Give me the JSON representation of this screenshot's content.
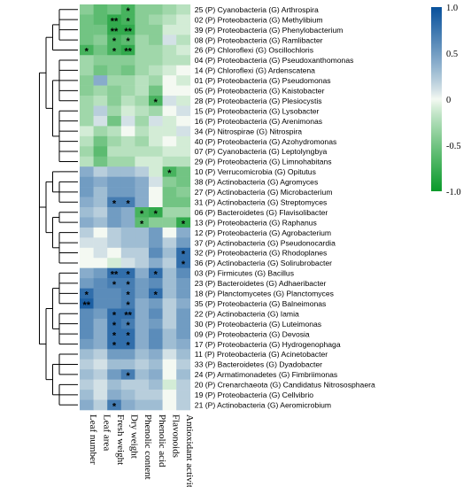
{
  "chart_data": {
    "type": "heatmap",
    "title": "",
    "columns": [
      "Leaf number",
      "Leaf area",
      "Fresh weight",
      "Dry weight",
      "Phenolic content",
      "Phenolic acid",
      "Flavonoids",
      "Antioxidant activity"
    ],
    "rows": [
      "25 (P) Cyanobacteria (G) Arthrospira",
      "02 (P) Proteobacteria (G) Methylibium",
      "39 (P) Proteobacteria (G) Phenylobacterium",
      "08 (P) Proteobacteria (G) Ramlibacter",
      "26 (P) Chloroflexi (G) Oscillochloris",
      "04 (P) Proteobacteria (G) Pseudoxanthomonas",
      "14 (P) Chloroflexi (G) Ardenscatena",
      "01 (P) Proteobacteria (G) Pseudomonas",
      "05 (P) Proteobacteria (G) Kaistobacter",
      "28 (P) Proteobacteria (G) Plesiocystis",
      "15 (P) Proteobacteria (G) Lysobacter",
      "16 (P) Proteobacteria (G) Arenimonas",
      "34 (P) Nitrospirae (G) Nitrospira",
      "40 (P) Proteobacteria (G) Azohydromonas",
      "07 (P) Cyanobacteria (G) Leptolyngbya",
      "29 (P) Proteobacteria (G) Limnohabitans",
      "10 (P) Verrucomicrobia (G) Opitutus",
      "38 (P) Actinobacteria (G) Agromyces",
      "27 (P) Actinobacteria (G) Microbacterium",
      "31 (P) Actinobacteria (G) Streptomyces",
      "06 (P) Bacteroidetes (G) Flavisolibacter",
      "13 (P) Proteobacteria (G) Raphanus",
      "12 (P) Proteobacteria (G) Agrobacterium",
      "37 (P) Actinobacteria (G) Pseudonocardia",
      "32 (P) Proteobacteria (G) Rhodoplanes",
      "36 (P) Actinobacteria (G) Solirubrobacter",
      "03 (P) Firmicutes (G) Bacillus",
      "23 (P) Bacteroidetes (G) Adhaeribacter",
      "18 (P) Planctomycetes (G) Planctomyces",
      "35 (P) Proteobacteria (G) Balneimonas",
      "22 (P) Actinobacteria (G) Iamia",
      "30 (P) Proteobacteria (G) Luteimonas",
      "09 (P) Proteobacteria (G) Devosia",
      "17 (P) Proteobacteria (G) Hydrogenophaga",
      "11 (P) Proteobacteria (G) Acinetobacter",
      "33 (P) Bacteroidetes (G) Dyadobacter",
      "24 (P) Armatimonadetes (G) Fimbriimonas",
      "20 (P) Crenarchaeota (G) Candidatus Nitrososphaera",
      "19 (P) Proteobacteria (G) Cellvibrio",
      "21 (P) Actinobacteria (G) Aeromicrobium"
    ],
    "values": [
      [
        -0.4,
        -0.6,
        -0.5,
        -0.7,
        -0.4,
        -0.4,
        -0.3,
        -0.2
      ],
      [
        -0.5,
        -0.6,
        -0.8,
        -0.7,
        -0.4,
        -0.3,
        -0.2,
        -0.1
      ],
      [
        -0.5,
        -0.5,
        -0.8,
        -0.8,
        -0.4,
        -0.4,
        -0.1,
        -0.1
      ],
      [
        -0.5,
        -0.4,
        -0.7,
        -0.6,
        -0.3,
        -0.4,
        0.1,
        -0.2
      ],
      [
        -0.7,
        -0.5,
        -0.7,
        -0.8,
        -0.3,
        -0.3,
        -0.2,
        -0.1
      ],
      [
        -0.3,
        -0.4,
        -0.4,
        -0.4,
        -0.3,
        -0.3,
        -0.2,
        -0.2
      ],
      [
        -0.3,
        -0.5,
        -0.4,
        -0.5,
        -0.3,
        -0.2,
        -0.1,
        0.0
      ],
      [
        -0.4,
        0.4,
        -0.3,
        -0.3,
        -0.2,
        -0.3,
        0.0,
        -0.1
      ],
      [
        -0.4,
        -0.3,
        -0.4,
        -0.3,
        -0.2,
        -0.5,
        0.0,
        0.0
      ],
      [
        -0.3,
        -0.2,
        -0.4,
        -0.2,
        -0.3,
        -0.7,
        0.1,
        -0.1
      ],
      [
        -0.3,
        0.2,
        -0.3,
        -0.1,
        -0.2,
        -0.3,
        0.0,
        0.1
      ],
      [
        -0.3,
        0.1,
        -0.5,
        0.1,
        -0.3,
        0.1,
        -0.1,
        0.0
      ],
      [
        -0.1,
        -0.3,
        -0.2,
        0.0,
        -0.2,
        -0.1,
        -0.1,
        0.1
      ],
      [
        -0.2,
        -0.5,
        -0.3,
        -0.2,
        -0.3,
        -0.1,
        0.0,
        -0.1
      ],
      [
        -0.3,
        -0.6,
        -0.2,
        -0.2,
        -0.2,
        -0.2,
        -0.1,
        -0.1
      ],
      [
        -0.2,
        -0.5,
        -0.3,
        -0.3,
        -0.1,
        -0.1,
        -0.2,
        -0.2
      ],
      [
        0.4,
        0.2,
        0.3,
        0.3,
        0.2,
        -0.1,
        -0.7,
        -0.5
      ],
      [
        0.5,
        0.4,
        0.5,
        0.5,
        0.4,
        0.1,
        -0.4,
        -0.5
      ],
      [
        0.5,
        0.3,
        0.5,
        0.5,
        0.4,
        0.0,
        -0.5,
        -0.4
      ],
      [
        0.4,
        0.3,
        0.7,
        0.7,
        0.4,
        0.0,
        -0.5,
        -0.5
      ],
      [
        0.3,
        0.2,
        0.5,
        0.4,
        -0.7,
        -0.8,
        -0.3,
        -0.3
      ],
      [
        0.4,
        0.3,
        0.5,
        0.4,
        -0.6,
        -0.4,
        -0.4,
        -0.8
      ],
      [
        0.2,
        0.0,
        0.2,
        0.3,
        0.3,
        0.5,
        0.0,
        0.4
      ],
      [
        0.1,
        0.1,
        0.2,
        0.3,
        0.3,
        0.5,
        0.2,
        0.5
      ],
      [
        0.0,
        0.1,
        0.0,
        0.2,
        0.2,
        0.6,
        0.3,
        0.8
      ],
      [
        0.0,
        0.0,
        -0.1,
        0.1,
        0.2,
        0.4,
        0.2,
        0.8
      ],
      [
        0.4,
        0.5,
        0.8,
        0.8,
        0.4,
        0.8,
        0.3,
        0.6
      ],
      [
        0.5,
        0.6,
        0.7,
        0.7,
        0.5,
        0.6,
        0.3,
        0.5
      ],
      [
        0.8,
        0.6,
        0.6,
        0.7,
        0.5,
        0.8,
        0.3,
        0.5
      ],
      [
        0.9,
        0.6,
        0.6,
        0.7,
        0.4,
        0.5,
        0.2,
        0.4
      ],
      [
        0.6,
        0.5,
        0.8,
        0.8,
        0.4,
        0.6,
        0.2,
        0.5
      ],
      [
        0.6,
        0.4,
        0.8,
        0.7,
        0.4,
        0.5,
        0.2,
        0.5
      ],
      [
        0.6,
        0.4,
        0.8,
        0.8,
        0.4,
        0.6,
        0.3,
        0.5
      ],
      [
        0.5,
        0.4,
        0.8,
        0.8,
        0.4,
        0.6,
        0.3,
        0.4
      ],
      [
        0.3,
        0.2,
        0.5,
        0.5,
        0.3,
        0.4,
        0.1,
        0.3
      ],
      [
        0.2,
        0.1,
        0.3,
        0.3,
        0.2,
        0.3,
        0.0,
        0.2
      ],
      [
        0.3,
        0.2,
        0.5,
        0.7,
        0.3,
        0.4,
        0.0,
        0.3
      ],
      [
        0.2,
        0.1,
        0.3,
        0.2,
        0.2,
        0.3,
        -0.1,
        0.2
      ],
      [
        0.3,
        0.1,
        0.4,
        0.3,
        0.2,
        0.2,
        0.0,
        0.2
      ],
      [
        0.4,
        0.2,
        0.7,
        0.4,
        0.3,
        0.3,
        0.0,
        0.2
      ]
    ],
    "significance": [
      [
        "",
        "",
        "",
        "*",
        "",
        "",
        "",
        ""
      ],
      [
        "",
        "",
        "**",
        "*",
        "",
        "",
        "",
        ""
      ],
      [
        "",
        "",
        "**",
        "**",
        "",
        "",
        "",
        ""
      ],
      [
        "",
        "",
        "*",
        "*",
        "",
        "",
        "",
        ""
      ],
      [
        "*",
        "",
        "*",
        "**",
        "",
        "",
        "",
        ""
      ],
      [
        "",
        "",
        "",
        "",
        "",
        "",
        "",
        ""
      ],
      [
        "",
        "",
        "",
        "",
        "",
        "",
        "",
        ""
      ],
      [
        "",
        "",
        "",
        "",
        "",
        "",
        "",
        ""
      ],
      [
        "",
        "",
        "",
        "",
        "",
        "",
        "",
        ""
      ],
      [
        "",
        "",
        "",
        "",
        "",
        "*",
        "",
        ""
      ],
      [
        "",
        "",
        "",
        "",
        "",
        "",
        "",
        ""
      ],
      [
        "",
        "",
        "",
        "",
        "",
        "",
        "",
        ""
      ],
      [
        "",
        "",
        "",
        "",
        "",
        "",
        "",
        ""
      ],
      [
        "",
        "",
        "",
        "",
        "",
        "",
        "",
        ""
      ],
      [
        "",
        "",
        "",
        "",
        "",
        "",
        "",
        ""
      ],
      [
        "",
        "",
        "",
        "",
        "",
        "",
        "",
        ""
      ],
      [
        "",
        "",
        "",
        "",
        "",
        "",
        "*",
        ""
      ],
      [
        "",
        "",
        "",
        "",
        "",
        "",
        "",
        ""
      ],
      [
        "",
        "",
        "",
        "",
        "",
        "",
        "",
        ""
      ],
      [
        "",
        "",
        "*",
        "*",
        "",
        "",
        "",
        ""
      ],
      [
        "",
        "",
        "",
        "",
        "*",
        "*",
        "",
        ""
      ],
      [
        "",
        "",
        "",
        "",
        "*",
        "",
        "",
        "*"
      ],
      [
        "",
        "",
        "",
        "",
        "",
        "",
        "",
        ""
      ],
      [
        "",
        "",
        "",
        "",
        "",
        "",
        "",
        ""
      ],
      [
        "",
        "",
        "",
        "",
        "",
        "",
        "",
        "*"
      ],
      [
        "",
        "",
        "",
        "",
        "",
        "",
        "",
        "*"
      ],
      [
        "",
        "",
        "**",
        "*",
        "",
        "*",
        "",
        ""
      ],
      [
        "",
        "",
        "*",
        "*",
        "",
        "",
        "",
        ""
      ],
      [
        "*",
        "",
        "",
        "*",
        "",
        "*",
        "",
        ""
      ],
      [
        "**",
        "",
        "",
        "*",
        "",
        "",
        "",
        ""
      ],
      [
        "",
        "",
        "*",
        "**",
        "",
        "",
        "",
        ""
      ],
      [
        "",
        "",
        "*",
        "*",
        "",
        "",
        "",
        ""
      ],
      [
        "",
        "",
        "*",
        "*",
        "",
        "",
        "",
        ""
      ],
      [
        "",
        "",
        "*",
        "*",
        "",
        "",
        "",
        ""
      ],
      [
        "",
        "",
        "",
        "",
        "",
        "",
        "",
        ""
      ],
      [
        "",
        "",
        "",
        "",
        "",
        "",
        "",
        ""
      ],
      [
        "",
        "",
        "",
        "*",
        "",
        "",
        "",
        ""
      ],
      [
        "",
        "",
        "",
        "",
        "",
        "",
        "",
        ""
      ],
      [
        "",
        "",
        "",
        "",
        "",
        "",
        "",
        ""
      ],
      [
        "",
        "",
        "*",
        "",
        "",
        "",
        "",
        ""
      ]
    ],
    "color_scale": {
      "range": [
        -1.0,
        1.0
      ],
      "ticks": [
        1.0,
        0.5,
        0,
        -0.5,
        -1.0
      ],
      "tick_labels": [
        "1.0",
        "0.5",
        "0",
        "-0.5",
        "-1.0"
      ],
      "positive_color": "#08519c",
      "neutral_color": "#f4f9f2",
      "negative_color": "#0a9a2a"
    },
    "dendrogram": "left",
    "legend": "top-right",
    "grid": false
  }
}
